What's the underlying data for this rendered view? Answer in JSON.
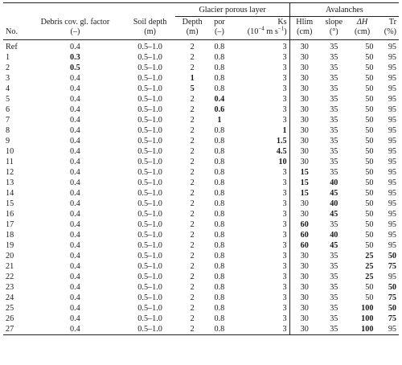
{
  "header": {
    "group_glacier": "Glacier porous layer",
    "group_avalanches": "Avalanches",
    "cols": [
      {
        "name": "No.",
        "unit": ""
      },
      {
        "name": "Debris cov. gl. factor",
        "unit": "(–)"
      },
      {
        "name": "Soil depth",
        "unit": "(m)"
      },
      {
        "name": "Depth",
        "unit": "(m)"
      },
      {
        "name": "por",
        "unit": "(–)"
      },
      {
        "name": "Ks",
        "unit_prefix": "(10",
        "unit_exp": "−4",
        "unit_suffix": " m s",
        "unit_exp2": "−1",
        "unit_close": ")"
      },
      {
        "name": "Hlim",
        "unit": "(cm)"
      },
      {
        "name": "slope",
        "unit": "(°)"
      },
      {
        "name": "ΔH",
        "unit": "(cm)"
      },
      {
        "name": "Tr",
        "unit": "(%)"
      }
    ]
  },
  "rows": [
    [
      "Ref",
      "0.4",
      "0.5–1.0",
      "2",
      "0.8",
      "3",
      "30",
      "35",
      "50",
      "95"
    ],
    [
      "1",
      "0.3",
      "0.5–1.0",
      "2",
      "0.8",
      "3",
      "30",
      "35",
      "50",
      "95"
    ],
    [
      "2",
      "0.5",
      "0.5–1.0",
      "2",
      "0.8",
      "3",
      "30",
      "35",
      "50",
      "95"
    ],
    [
      "3",
      "0.4",
      "0.5–1.0",
      "1",
      "0.8",
      "3",
      "30",
      "35",
      "50",
      "95"
    ],
    [
      "4",
      "0.4",
      "0.5–1.0",
      "5",
      "0.8",
      "3",
      "30",
      "35",
      "50",
      "95"
    ],
    [
      "5",
      "0.4",
      "0.5–1.0",
      "2",
      "0.4",
      "3",
      "30",
      "35",
      "50",
      "95"
    ],
    [
      "6",
      "0.4",
      "0.5–1.0",
      "2",
      "0.6",
      "3",
      "30",
      "35",
      "50",
      "95"
    ],
    [
      "7",
      "0.4",
      "0.5–1.0",
      "2",
      "1",
      "3",
      "30",
      "35",
      "50",
      "95"
    ],
    [
      "8",
      "0.4",
      "0.5–1.0",
      "2",
      "0.8",
      "1",
      "30",
      "35",
      "50",
      "95"
    ],
    [
      "9",
      "0.4",
      "0.5–1.0",
      "2",
      "0.8",
      "1.5",
      "30",
      "35",
      "50",
      "95"
    ],
    [
      "10",
      "0.4",
      "0.5–1.0",
      "2",
      "0.8",
      "4.5",
      "30",
      "35",
      "50",
      "95"
    ],
    [
      "11",
      "0.4",
      "0.5–1.0",
      "2",
      "0.8",
      "10",
      "30",
      "35",
      "50",
      "95"
    ],
    [
      "12",
      "0.4",
      "0.5–1.0",
      "2",
      "0.8",
      "3",
      "15",
      "35",
      "50",
      "95"
    ],
    [
      "13",
      "0.4",
      "0.5–1.0",
      "2",
      "0.8",
      "3",
      "15",
      "40",
      "50",
      "95"
    ],
    [
      "14",
      "0.4",
      "0.5–1.0",
      "2",
      "0.8",
      "3",
      "15",
      "45",
      "50",
      "95"
    ],
    [
      "15",
      "0.4",
      "0.5–1.0",
      "2",
      "0.8",
      "3",
      "30",
      "40",
      "50",
      "95"
    ],
    [
      "16",
      "0.4",
      "0.5–1.0",
      "2",
      "0.8",
      "3",
      "30",
      "45",
      "50",
      "95"
    ],
    [
      "17",
      "0.4",
      "0.5–1.0",
      "2",
      "0.8",
      "3",
      "60",
      "35",
      "50",
      "95"
    ],
    [
      "18",
      "0.4",
      "0.5–1.0",
      "2",
      "0.8",
      "3",
      "60",
      "40",
      "50",
      "95"
    ],
    [
      "19",
      "0.4",
      "0.5–1.0",
      "2",
      "0.8",
      "3",
      "60",
      "45",
      "50",
      "95"
    ],
    [
      "20",
      "0.4",
      "0.5–1.0",
      "2",
      "0.8",
      "3",
      "30",
      "35",
      "25",
      "50"
    ],
    [
      "21",
      "0.4",
      "0.5–1.0",
      "2",
      "0.8",
      "3",
      "30",
      "35",
      "25",
      "75"
    ],
    [
      "22",
      "0.4",
      "0.5–1.0",
      "2",
      "0.8",
      "3",
      "30",
      "35",
      "25",
      "95"
    ],
    [
      "23",
      "0.4",
      "0.5–1.0",
      "2",
      "0.8",
      "3",
      "30",
      "35",
      "50",
      "50"
    ],
    [
      "24",
      "0.4",
      "0.5–1.0",
      "2",
      "0.8",
      "3",
      "30",
      "35",
      "50",
      "75"
    ],
    [
      "25",
      "0.4",
      "0.5–1.0",
      "2",
      "0.8",
      "3",
      "30",
      "35",
      "100",
      "50"
    ],
    [
      "26",
      "0.4",
      "0.5–1.0",
      "2",
      "0.8",
      "3",
      "30",
      "35",
      "100",
      "75"
    ],
    [
      "27",
      "0.4",
      "0.5–1.0",
      "2",
      "0.8",
      "3",
      "30",
      "35",
      "100",
      "95"
    ]
  ],
  "bold_cells": [
    [
      1,
      1
    ],
    [
      2,
      1
    ],
    [
      3,
      3
    ],
    [
      4,
      3
    ],
    [
      5,
      4
    ],
    [
      6,
      4
    ],
    [
      7,
      4
    ],
    [
      8,
      5
    ],
    [
      9,
      5
    ],
    [
      10,
      5
    ],
    [
      11,
      5
    ],
    [
      12,
      6
    ],
    [
      13,
      6
    ],
    [
      13,
      7
    ],
    [
      14,
      6
    ],
    [
      14,
      7
    ],
    [
      15,
      7
    ],
    [
      16,
      7
    ],
    [
      17,
      6
    ],
    [
      18,
      6
    ],
    [
      18,
      7
    ],
    [
      19,
      6
    ],
    [
      19,
      7
    ],
    [
      20,
      8
    ],
    [
      20,
      9
    ],
    [
      21,
      8
    ],
    [
      21,
      9
    ],
    [
      22,
      8
    ],
    [
      23,
      9
    ],
    [
      24,
      9
    ],
    [
      25,
      8
    ],
    [
      25,
      9
    ],
    [
      26,
      8
    ],
    [
      26,
      9
    ],
    [
      27,
      8
    ]
  ]
}
